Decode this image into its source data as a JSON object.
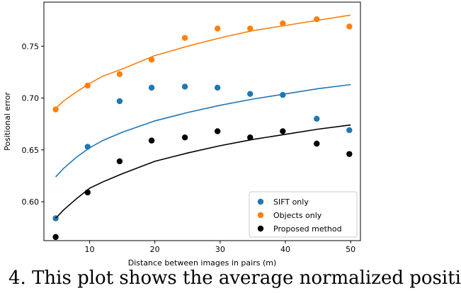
{
  "chart_data": {
    "type": "scatter",
    "xlabel": "Distance between images in pairs (m)",
    "ylabel": "Positional error",
    "xlim": [
      3.0,
      51.5
    ],
    "ylim": [
      0.5625,
      0.7925
    ],
    "xticks": [
      10,
      20,
      30,
      40,
      50
    ],
    "yticks": [
      0.6,
      0.65,
      0.7,
      0.75
    ],
    "xtick_labels": [
      "10",
      "20",
      "30",
      "40",
      "50"
    ],
    "ytick_labels": [
      "0.60",
      "0.65",
      "0.70",
      "0.75"
    ],
    "legend_position": "bottom-right",
    "grid": false,
    "series": [
      {
        "name": "SIFT only",
        "color": "#1f77b4",
        "x": [
          4.8,
          9.7,
          14.6,
          19.5,
          24.6,
          29.6,
          34.6,
          39.6,
          44.8,
          49.8
        ],
        "y": [
          0.584,
          0.653,
          0.697,
          0.71,
          0.711,
          0.71,
          0.704,
          0.703,
          0.68,
          0.669
        ],
        "fit": [
          [
            4.8,
            0.624
          ],
          [
            6,
            0.632
          ],
          [
            8,
            0.643
          ],
          [
            10,
            0.652
          ],
          [
            12,
            0.659
          ],
          [
            15,
            0.667
          ],
          [
            20,
            0.678
          ],
          [
            25,
            0.686
          ],
          [
            30,
            0.693
          ],
          [
            35,
            0.699
          ],
          [
            40,
            0.704
          ],
          [
            45,
            0.709
          ],
          [
            50,
            0.713
          ]
        ]
      },
      {
        "name": "Objects only",
        "color": "#ff7f0e",
        "x": [
          4.8,
          9.7,
          14.6,
          19.5,
          24.6,
          29.6,
          34.6,
          39.6,
          44.8,
          49.8
        ],
        "y": [
          0.689,
          0.712,
          0.723,
          0.737,
          0.758,
          0.767,
          0.767,
          0.772,
          0.776,
          0.769
        ],
        "fit": [
          [
            4.8,
            0.69
          ],
          [
            6,
            0.697
          ],
          [
            8,
            0.706
          ],
          [
            10,
            0.714
          ],
          [
            12,
            0.721
          ],
          [
            15,
            0.728
          ],
          [
            20,
            0.741
          ],
          [
            25,
            0.75
          ],
          [
            30,
            0.758
          ],
          [
            35,
            0.765
          ],
          [
            40,
            0.77
          ],
          [
            45,
            0.775
          ],
          [
            50,
            0.78
          ]
        ]
      },
      {
        "name": "Proposed method",
        "color": "#000000",
        "x": [
          4.8,
          9.7,
          14.6,
          19.5,
          24.6,
          29.6,
          34.6,
          39.6,
          44.8,
          49.8
        ],
        "y": [
          0.566,
          0.609,
          0.639,
          0.659,
          0.662,
          0.668,
          0.662,
          0.668,
          0.656,
          0.646
        ],
        "fit": [
          [
            4.8,
            0.584
          ],
          [
            6,
            0.592
          ],
          [
            8,
            0.603
          ],
          [
            10,
            0.613
          ],
          [
            12,
            0.619
          ],
          [
            15,
            0.627
          ],
          [
            20,
            0.639
          ],
          [
            25,
            0.647
          ],
          [
            30,
            0.654
          ],
          [
            35,
            0.66
          ],
          [
            40,
            0.665
          ],
          [
            45,
            0.67
          ],
          [
            50,
            0.674
          ]
        ]
      }
    ]
  },
  "caption_text": "4. This plot shows the average normalized positi"
}
